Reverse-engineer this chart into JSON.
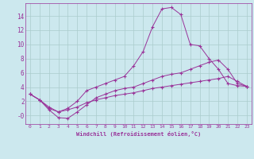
{
  "title": "",
  "xlabel": "Windchill (Refroidissement éolien,°C)",
  "ylabel": "",
  "background_color": "#cce8ee",
  "grid_color": "#aacccc",
  "line_color": "#993399",
  "xlim": [
    -0.5,
    23.5
  ],
  "ylim": [
    -1.2,
    15.8
  ],
  "yticks": [
    0,
    2,
    4,
    6,
    8,
    10,
    12,
    14
  ],
  "ytick_labels": [
    "-0",
    "2",
    "4",
    "6",
    "8",
    "10",
    "12",
    "14"
  ],
  "xticks": [
    0,
    1,
    2,
    3,
    4,
    5,
    6,
    7,
    8,
    9,
    10,
    11,
    12,
    13,
    14,
    15,
    16,
    17,
    18,
    19,
    20,
    21,
    22,
    23
  ],
  "series": [
    [
      3.0,
      2.2,
      1.0,
      0.5,
      1.0,
      2.0,
      3.5,
      4.0,
      4.5,
      5.0,
      5.5,
      7.0,
      9.0,
      12.5,
      15.0,
      15.2,
      14.2,
      10.0,
      9.8,
      8.0,
      6.5,
      4.5,
      4.2,
      4.1
    ],
    [
      3.0,
      2.2,
      0.8,
      -0.3,
      -0.4,
      0.5,
      1.5,
      2.5,
      3.0,
      3.5,
      3.8,
      4.0,
      4.5,
      5.0,
      5.5,
      5.8,
      6.0,
      6.5,
      7.0,
      7.5,
      7.8,
      6.5,
      4.5,
      4.1
    ],
    [
      3.0,
      2.2,
      1.2,
      0.5,
      0.8,
      1.2,
      1.8,
      2.2,
      2.5,
      2.8,
      3.0,
      3.2,
      3.5,
      3.8,
      4.0,
      4.2,
      4.4,
      4.6,
      4.8,
      5.0,
      5.2,
      5.5,
      4.8,
      4.1
    ]
  ],
  "xlabel_fontsize": 5.0,
  "tick_fontsize_x": 4.5,
  "tick_fontsize_y": 5.5
}
